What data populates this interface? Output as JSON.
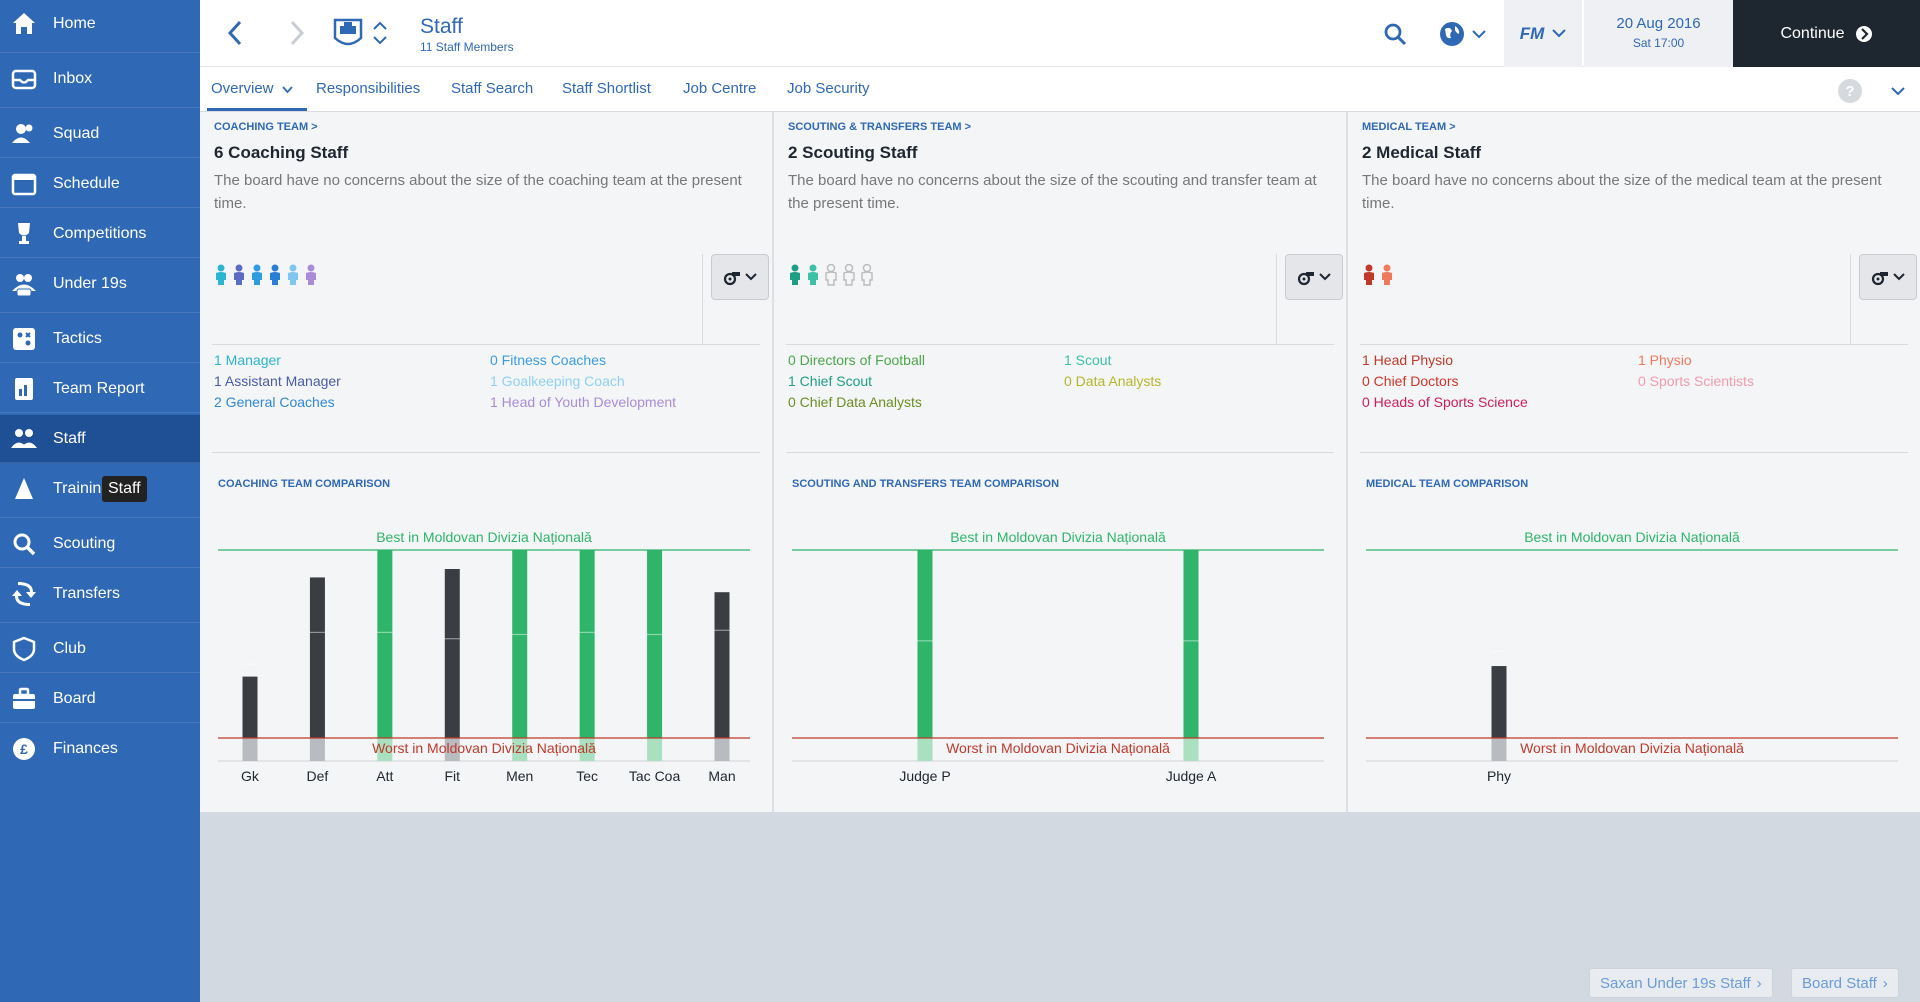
{
  "sidebar": {
    "items": [
      {
        "label": "Home",
        "icon": "home-icon"
      },
      {
        "label": "Inbox",
        "icon": "inbox-icon"
      },
      {
        "label": "Squad",
        "icon": "squad-icon"
      },
      {
        "label": "Schedule",
        "icon": "calendar-icon"
      },
      {
        "label": "Competitions",
        "icon": "trophy-icon"
      },
      {
        "label": "Under 19s",
        "icon": "u19-icon"
      },
      {
        "label": "Tactics",
        "icon": "tactics-icon"
      },
      {
        "label": "Team Report",
        "icon": "report-icon"
      },
      {
        "label": "Staff",
        "icon": "staff-icon"
      },
      {
        "label": "Trainin",
        "icon": "training-icon"
      },
      {
        "label": "Scouting",
        "icon": "search-icon"
      },
      {
        "label": "Transfers",
        "icon": "transfers-icon"
      },
      {
        "label": "Club",
        "icon": "shield-icon"
      },
      {
        "label": "Board",
        "icon": "briefcase-icon"
      },
      {
        "label": "Finances",
        "icon": "pound-icon"
      }
    ],
    "active": "Staff",
    "tooltip": "Staff"
  },
  "header": {
    "title": "Staff",
    "subtitle": "11 Staff Members",
    "date": "20 Aug 2016",
    "time": "Sat 17:00",
    "fm_label": "FM",
    "continue_label": "Continue"
  },
  "tabs": [
    {
      "label": "Overview"
    },
    {
      "label": "Responsibilities"
    },
    {
      "label": "Staff Search"
    },
    {
      "label": "Staff Shortlist"
    },
    {
      "label": "Job Centre"
    },
    {
      "label": "Job Security"
    }
  ],
  "panels": [
    {
      "section": "COACHING TEAM >",
      "title": "6 Coaching Staff",
      "desc": "The board have no concerns about the size of the coaching team at the present time.",
      "people": [
        {
          "color": "#2bb5d1",
          "filled": true
        },
        {
          "color": "#5b6cc4",
          "filled": true
        },
        {
          "color": "#2f9be0",
          "filled": true
        },
        {
          "color": "#2a7fd4",
          "filled": true
        },
        {
          "color": "#7fc6f0",
          "filled": true
        },
        {
          "color": "#a98bd8",
          "filled": true
        }
      ],
      "roles_left": [
        {
          "text": "1 Manager",
          "color": "#2bb5d1"
        },
        {
          "text": "1 Assistant Manager",
          "color": "#4a5aa8"
        },
        {
          "text": "2 General Coaches",
          "color": "#2f88d6"
        }
      ],
      "roles_right": [
        {
          "text": "0 Fitness Coaches",
          "color": "#3b9be0"
        },
        {
          "text": "1 Goalkeeping Coach",
          "color": "#8fd0f2"
        },
        {
          "text": "1 Head of Youth Development",
          "color": "#a98bd8"
        }
      ],
      "comparison_title": "COACHING TEAM COMPARISON"
    },
    {
      "section": "SCOUTING & TRANSFERS TEAM >",
      "title": "2 Scouting Staff",
      "desc": "The board have no concerns about the size of the scouting and transfer team at the present time.",
      "people": [
        {
          "color": "#1e9e84",
          "filled": true
        },
        {
          "color": "#3cc0a8",
          "filled": true
        },
        {
          "color": "#bbbbbb",
          "filled": false
        },
        {
          "color": "#bbbbbb",
          "filled": false
        },
        {
          "color": "#bbbbbb",
          "filled": false
        }
      ],
      "roles_left": [
        {
          "text": "0 Directors of Football",
          "color": "#4aa84a"
        },
        {
          "text": "1 Chief Scout",
          "color": "#1e9e84"
        },
        {
          "text": "0 Chief Data Analysts",
          "color": "#6b8e23"
        }
      ],
      "roles_right": [
        {
          "text": "1 Scout",
          "color": "#3cc0a8"
        },
        {
          "text": "0 Data Analysts",
          "color": "#b5b52a"
        }
      ],
      "comparison_title": "SCOUTING AND TRANSFERS TEAM COMPARISON"
    },
    {
      "section": "MEDICAL TEAM >",
      "title": "2 Medical Staff",
      "desc": "The board have no concerns about the size of the medical team at the present time.",
      "people": [
        {
          "color": "#c0392b",
          "filled": true
        },
        {
          "color": "#f07a5e",
          "filled": true
        }
      ],
      "roles_left": [
        {
          "text": "1 Head Physio",
          "color": "#c0392b"
        },
        {
          "text": "0 Chief Doctors",
          "color": "#d0352b"
        },
        {
          "text": "0 Heads of Sports Science",
          "color": "#cc1f5a"
        }
      ],
      "roles_right": [
        {
          "text": "1 Physio",
          "color": "#f07a5e"
        },
        {
          "text": "0 Sports Scientists",
          "color": "#f29ab0"
        }
      ],
      "comparison_title": "MEDICAL TEAM COMPARISON"
    }
  ],
  "chart_data": [
    {
      "type": "bar",
      "title": "COACHING TEAM COMPARISON",
      "best_label": "Best in Moldovan Divizia Națională",
      "worst_label": "Worst in Moldovan Divizia Națională",
      "categories": [
        "Gk",
        "Def",
        "Att",
        "Fit",
        "Men",
        "Tec",
        "Tac Coa",
        "Man"
      ],
      "values": [
        0.4,
        0.87,
        1.0,
        0.91,
        1.0,
        1.0,
        1.0,
        0.8
      ],
      "average_marks": [
        0.27,
        0.42,
        0.42,
        0.39,
        0.41,
        0.42,
        0.41,
        0.43
      ],
      "at_best": [
        false,
        false,
        true,
        false,
        true,
        true,
        true,
        false
      ],
      "ylim": [
        0,
        1
      ]
    },
    {
      "type": "bar",
      "title": "SCOUTING AND TRANSFERS TEAM COMPARISON",
      "best_label": "Best in Moldovan Divizia Națională",
      "worst_label": "Worst in Moldovan Divizia Națională",
      "categories": [
        "Judge P",
        "Judge A"
      ],
      "values": [
        1.0,
        1.0
      ],
      "average_marks": [
        0.38,
        0.38
      ],
      "at_best": [
        true,
        true
      ],
      "ylim": [
        0,
        1
      ]
    },
    {
      "type": "bar",
      "title": "MEDICAL TEAM COMPARISON",
      "best_label": "Best in Moldovan Divizia Națională",
      "worst_label": "Worst in Moldovan Divizia Națională",
      "categories": [
        "Phy"
      ],
      "values": [
        0.45
      ],
      "average_marks": [
        0.33
      ],
      "at_best": [
        false
      ],
      "ylim": [
        0,
        1
      ]
    }
  ],
  "footer": {
    "btn1": "Saxan Under 19s Staff",
    "btn2": "Board Staff"
  },
  "colors": {
    "sidebar": "#2f68b5",
    "sidebar_active": "#1f4f95",
    "accent": "#2f68b5",
    "bar_dark": "#3a3d42",
    "bar_green": "#2eb56a",
    "best_line": "#2eb56a",
    "worst_line": "#c0392b"
  }
}
